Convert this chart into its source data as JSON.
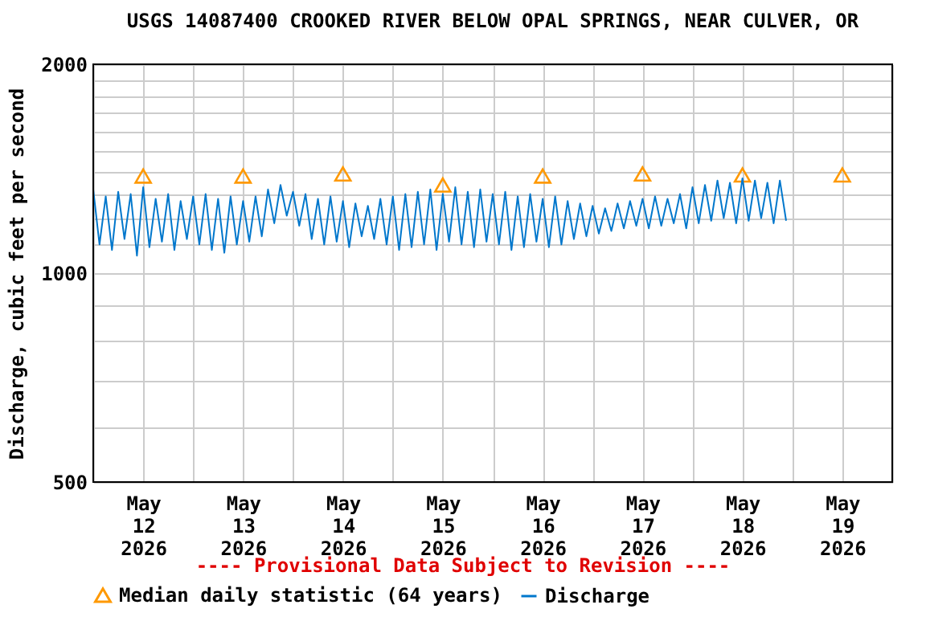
{
  "chart_data": {
    "type": "line",
    "title": "USGS 14087400 CROOKED RIVER BELOW OPAL SPRINGS, NEAR CULVER, OR",
    "ylabel": "Discharge, cubic feet per second",
    "annotations": [
      "---- Provisional Data Subject to Revision ----"
    ],
    "log": "y",
    "grid": true,
    "legend": "bottom",
    "xlim": [
      "2026-05-12T00:00",
      "2026-05-20T00:00"
    ],
    "xticks": [
      {
        "value": "2026-05-12T00:00",
        "label": null
      },
      {
        "value": "2026-05-12T12:00",
        "label": "May\n12\n2026"
      },
      {
        "value": "2026-05-13T00:00",
        "label": null
      },
      {
        "value": "2026-05-13T12:00",
        "label": "May\n13\n2026"
      },
      {
        "value": "2026-05-14T00:00",
        "label": null
      },
      {
        "value": "2026-05-14T12:00",
        "label": "May\n14\n2026"
      },
      {
        "value": "2026-05-15T00:00",
        "label": null
      },
      {
        "value": "2026-05-15T12:00",
        "label": "May\n15\n2026"
      },
      {
        "value": "2026-05-16T00:00",
        "label": null
      },
      {
        "value": "2026-05-16T12:00",
        "label": "May\n16\n2026"
      },
      {
        "value": "2026-05-17T00:00",
        "label": null
      },
      {
        "value": "2026-05-17T12:00",
        "label": "May\n17\n2026"
      },
      {
        "value": "2026-05-18T00:00",
        "label": null
      },
      {
        "value": "2026-05-18T12:00",
        "label": "May\n18\n2026"
      },
      {
        "value": "2026-05-19T00:00",
        "label": null
      },
      {
        "value": "2026-05-19T12:00",
        "label": "May\n19\n2026"
      },
      {
        "value": "2026-05-20T00:00",
        "label": null
      }
    ],
    "ylim": [
      500,
      2000
    ],
    "yticks": [
      500,
      {
        "value": 600,
        "label": null
      },
      {
        "value": 700,
        "label": null
      },
      {
        "value": 800,
        "label": null
      },
      {
        "value": 900,
        "label": null
      },
      1000,
      {
        "value": 1100,
        "label": null
      },
      {
        "value": 1200,
        "label": null
      },
      {
        "value": 1300,
        "label": null
      },
      {
        "value": 1400,
        "label": null
      },
      {
        "value": 1500,
        "label": null
      },
      {
        "value": 1600,
        "label": null
      },
      {
        "value": 1700,
        "label": null
      },
      {
        "value": 1800,
        "label": null
      },
      {
        "value": 1900,
        "label": null
      },
      2000
    ],
    "series": [
      {
        "name": "Median daily statistic (64 years)",
        "type": "scatter",
        "marker": "triangle",
        "color": "#ff9900",
        "x": [
          "2026-05-12T12:00",
          "2026-05-13T12:00",
          "2026-05-14T12:00",
          "2026-05-15T12:00",
          "2026-05-16T12:00",
          "2026-05-17T12:00",
          "2026-05-18T12:00",
          "2026-05-19T12:00"
        ],
        "values": [
          1380,
          1380,
          1390,
          1340,
          1380,
          1390,
          1385,
          1385
        ]
      },
      {
        "name": "Discharge",
        "color": "#0077cc",
        "x": [
          "2026-05-12T00:00",
          "2026-05-12T01:30",
          "2026-05-12T03:00",
          "2026-05-12T04:30",
          "2026-05-12T06:00",
          "2026-05-12T07:30",
          "2026-05-12T09:00",
          "2026-05-12T10:30",
          "2026-05-12T12:00",
          "2026-05-12T13:30",
          "2026-05-12T15:00",
          "2026-05-12T16:30",
          "2026-05-12T18:00",
          "2026-05-12T19:30",
          "2026-05-12T21:00",
          "2026-05-12T22:30",
          "2026-05-13T00:00",
          "2026-05-13T01:30",
          "2026-05-13T03:00",
          "2026-05-13T04:30",
          "2026-05-13T06:00",
          "2026-05-13T07:30",
          "2026-05-13T09:00",
          "2026-05-13T10:30",
          "2026-05-13T12:00",
          "2026-05-13T13:30",
          "2026-05-13T15:00",
          "2026-05-13T16:30",
          "2026-05-13T18:00",
          "2026-05-13T19:30",
          "2026-05-13T21:00",
          "2026-05-13T22:30",
          "2026-05-14T00:00",
          "2026-05-14T01:30",
          "2026-05-14T03:00",
          "2026-05-14T04:30",
          "2026-05-14T06:00",
          "2026-05-14T07:30",
          "2026-05-14T09:00",
          "2026-05-14T10:30",
          "2026-05-14T12:00",
          "2026-05-14T13:30",
          "2026-05-14T15:00",
          "2026-05-14T16:30",
          "2026-05-14T18:00",
          "2026-05-14T19:30",
          "2026-05-14T21:00",
          "2026-05-14T22:30",
          "2026-05-15T00:00",
          "2026-05-15T01:30",
          "2026-05-15T03:00",
          "2026-05-15T04:30",
          "2026-05-15T06:00",
          "2026-05-15T07:30",
          "2026-05-15T09:00",
          "2026-05-15T10:30",
          "2026-05-15T12:00",
          "2026-05-15T13:30",
          "2026-05-15T15:00",
          "2026-05-15T16:30",
          "2026-05-15T18:00",
          "2026-05-15T19:30",
          "2026-05-15T21:00",
          "2026-05-15T22:30",
          "2026-05-16T00:00",
          "2026-05-16T01:30",
          "2026-05-16T03:00",
          "2026-05-16T04:30",
          "2026-05-16T06:00",
          "2026-05-16T07:30",
          "2026-05-16T09:00",
          "2026-05-16T10:30",
          "2026-05-16T12:00",
          "2026-05-16T13:30",
          "2026-05-16T15:00",
          "2026-05-16T16:30",
          "2026-05-16T18:00",
          "2026-05-16T19:30",
          "2026-05-16T21:00",
          "2026-05-16T22:30",
          "2026-05-17T00:00",
          "2026-05-17T01:30",
          "2026-05-17T03:00",
          "2026-05-17T04:30",
          "2026-05-17T06:00",
          "2026-05-17T07:30",
          "2026-05-17T09:00",
          "2026-05-17T10:30",
          "2026-05-17T12:00",
          "2026-05-17T13:30",
          "2026-05-17T15:00",
          "2026-05-17T16:30",
          "2026-05-17T18:00",
          "2026-05-17T19:30",
          "2026-05-17T21:00",
          "2026-05-17T22:30",
          "2026-05-18T00:00",
          "2026-05-18T01:30",
          "2026-05-18T03:00",
          "2026-05-18T04:30",
          "2026-05-18T06:00",
          "2026-05-18T07:30",
          "2026-05-18T09:00",
          "2026-05-18T10:30",
          "2026-05-18T12:00",
          "2026-05-18T13:30",
          "2026-05-18T15:00",
          "2026-05-18T16:30",
          "2026-05-18T18:00",
          "2026-05-18T19:30",
          "2026-05-18T21:00",
          "2026-05-18T22:30"
        ],
        "values": [
          1320,
          1100,
          1290,
          1080,
          1310,
          1120,
          1300,
          1060,
          1330,
          1090,
          1280,
          1110,
          1300,
          1080,
          1270,
          1120,
          1290,
          1100,
          1300,
          1080,
          1280,
          1070,
          1290,
          1100,
          1270,
          1110,
          1290,
          1130,
          1320,
          1180,
          1340,
          1210,
          1310,
          1170,
          1300,
          1120,
          1280,
          1100,
          1290,
          1110,
          1270,
          1090,
          1260,
          1130,
          1250,
          1120,
          1280,
          1100,
          1290,
          1080,
          1300,
          1090,
          1310,
          1100,
          1320,
          1080,
          1300,
          1110,
          1330,
          1100,
          1310,
          1090,
          1320,
          1110,
          1300,
          1100,
          1310,
          1080,
          1290,
          1090,
          1300,
          1110,
          1280,
          1090,
          1290,
          1100,
          1270,
          1120,
          1260,
          1130,
          1250,
          1140,
          1240,
          1150,
          1260,
          1160,
          1270,
          1170,
          1280,
          1160,
          1290,
          1170,
          1280,
          1180,
          1300,
          1160,
          1330,
          1180,
          1340,
          1190,
          1360,
          1200,
          1350,
          1180,
          1370,
          1190,
          1360,
          1200,
          1350,
          1180,
          1360,
          1190
        ]
      }
    ]
  }
}
